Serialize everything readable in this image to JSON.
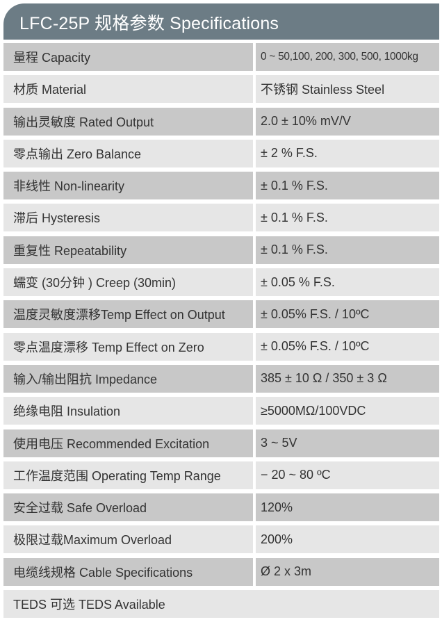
{
  "title": "LFC-25P 规格参数 Specifications",
  "rows": [
    {
      "label": "量程 Capacity",
      "value": "0 ~ 50,100, 200, 300, 500, 1000kg"
    },
    {
      "label": "材质 Material",
      "value": "不锈钢 Stainless Steel"
    },
    {
      "label": "输出灵敏度 Rated Output",
      "value": "2.0  ±  10% mV/V"
    },
    {
      "label": "零点输出  Zero Balance",
      "value": "± 2 % F.S."
    },
    {
      "label": "非线性 Non-linearity",
      "value": "± 0.1 % F.S."
    },
    {
      "label": "滞后 Hysteresis",
      "value": "± 0.1 % F.S."
    },
    {
      "label": "重复性 Repeatability",
      "value": "± 0.1 % F.S."
    },
    {
      "label": "蠕变 (30分钟 ) Creep (30min)",
      "value": "± 0.05 % F.S."
    },
    {
      "label": "温度灵敏度漂移Temp Effect on Output",
      "value": "± 0.05% F.S. / 10ºC"
    },
    {
      "label": "零点温度漂移 Temp Effect on Zero",
      "value": "± 0.05% F.S. / 10ºC"
    },
    {
      "label": "输入/输出阻抗 Impedance",
      "value": "385 ± 10 Ω  /  350 ± 3 Ω"
    },
    {
      "label": "绝缘电阻  Insulation",
      "value": "≥5000MΩ/100VDC"
    },
    {
      "label": "使用电压 Recommended Excitation",
      "value": "3 ~ 5V"
    },
    {
      "label": "工作温度范围 Operating Temp  Range",
      "value": "− 20 ~ 80 ºC"
    },
    {
      "label": "安全过载 Safe Overload",
      "value": "120%"
    },
    {
      "label": "极限过载Maximum Overload",
      "value": "200%"
    },
    {
      "label": "电缆线规格 Cable Specifications",
      "value": "Ø 2 x 3m"
    },
    {
      "label": "TEDS 可选 TEDS Available"
    }
  ],
  "colors": {
    "header": "#6c7c85",
    "row_dark": "#c8c8c8",
    "row_light": "#e6e6e6"
  }
}
